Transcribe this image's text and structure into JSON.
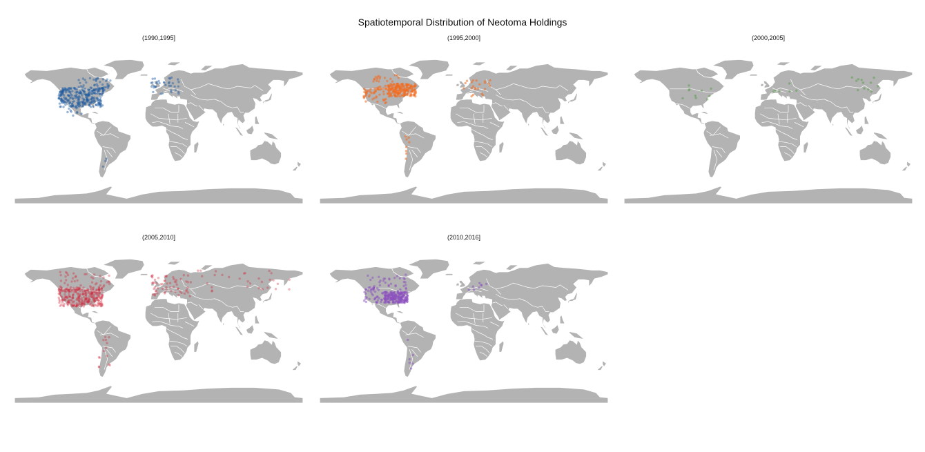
{
  "title": "Spatiotemporal Distribution of Neotoma Holdings",
  "panels": [
    {
      "label": "(1990,1995]",
      "color": "#1f5aa0",
      "opacity": 0.45
    },
    {
      "label": "(1995,2000]",
      "color": "#f26b21",
      "opacity": 0.55
    },
    {
      "label": "(2000,2005]",
      "color": "#4e9a3c",
      "opacity": 0.45
    },
    {
      "label": "(2005,2010]",
      "color": "#d1263a",
      "opacity": 0.35
    },
    {
      "label": "(2010,2016]",
      "color": "#8c4fbf",
      "opacity": 0.5
    }
  ],
  "chart_data": {
    "type": "scatter",
    "title": "Spatiotemporal Distribution of Neotoma Holdings",
    "x_label": "",
    "y_label": "",
    "facet_labels": [
      "(1990,1995]",
      "(1995,2000]",
      "(2000,2005]",
      "(2005,2010]",
      "(2010,2016]"
    ],
    "series": [
      {
        "facet": "(1990,1995]",
        "clusters": [
          {
            "lon": [
              -125,
              -70
            ],
            "lat": [
              28,
              50
            ],
            "n": 260
          },
          {
            "lon": [
              -100,
              -60
            ],
            "lat": [
              45,
              62
            ],
            "n": 50
          },
          {
            "lon": [
              -115,
              -95
            ],
            "lat": [
              18,
              30
            ],
            "n": 14
          },
          {
            "lon": [
              -10,
              25
            ],
            "lat": [
              43,
              62
            ],
            "n": 36
          },
          {
            "lon": [
              -70,
              -65
            ],
            "lat": [
              -50,
              -30
            ],
            "n": 3
          }
        ]
      },
      {
        "facet": "(1995,2000]",
        "clusters": [
          {
            "lon": [
              -95,
              -60
            ],
            "lat": [
              40,
              55
            ],
            "n": 170
          },
          {
            "lon": [
              -125,
              -95
            ],
            "lat": [
              30,
              50
            ],
            "n": 45
          },
          {
            "lon": [
              -115,
              -80
            ],
            "lat": [
              45,
              65
            ],
            "n": 40
          },
          {
            "lon": [
              -5,
              40
            ],
            "lat": [
              40,
              60
            ],
            "n": 22
          },
          {
            "lon": [
              -75,
              -65
            ],
            "lat": [
              -40,
              -5
            ],
            "n": 8
          }
        ]
      },
      {
        "facet": "(2000,2005]",
        "clusters": [
          {
            "lon": [
              -110,
              -70
            ],
            "lat": [
              30,
              55
            ],
            "n": 10
          },
          {
            "lon": [
              100,
              145
            ],
            "lat": [
              45,
              65
            ],
            "n": 12
          },
          {
            "lon": [
              -5,
              40
            ],
            "lat": [
              40,
              60
            ],
            "n": 6
          }
        ]
      },
      {
        "facet": "(2005,2010]",
        "clusters": [
          {
            "lon": [
              -125,
              -70
            ],
            "lat": [
              28,
              50
            ],
            "n": 280
          },
          {
            "lon": [
              -125,
              -60
            ],
            "lat": [
              50,
              68
            ],
            "n": 40
          },
          {
            "lon": [
              -10,
              40
            ],
            "lat": [
              38,
              65
            ],
            "n": 60
          },
          {
            "lon": [
              40,
              170
            ],
            "lat": [
              45,
              70
            ],
            "n": 30
          },
          {
            "lon": [
              -75,
              -60
            ],
            "lat": [
              -45,
              -5
            ],
            "n": 14
          }
        ]
      },
      {
        "facet": "(2010,2016]",
        "clusters": [
          {
            "lon": [
              -100,
              -70
            ],
            "lat": [
              32,
              45
            ],
            "n": 200
          },
          {
            "lon": [
              -125,
              -100
            ],
            "lat": [
              32,
              52
            ],
            "n": 40
          },
          {
            "lon": [
              -120,
              -70
            ],
            "lat": [
              45,
              65
            ],
            "n": 35
          },
          {
            "lon": [
              -80,
              -60
            ],
            "lat": [
              -45,
              -10
            ],
            "n": 6
          },
          {
            "lon": [
              -5,
              40
            ],
            "lat": [
              40,
              60
            ],
            "n": 8
          }
        ]
      }
    ]
  }
}
